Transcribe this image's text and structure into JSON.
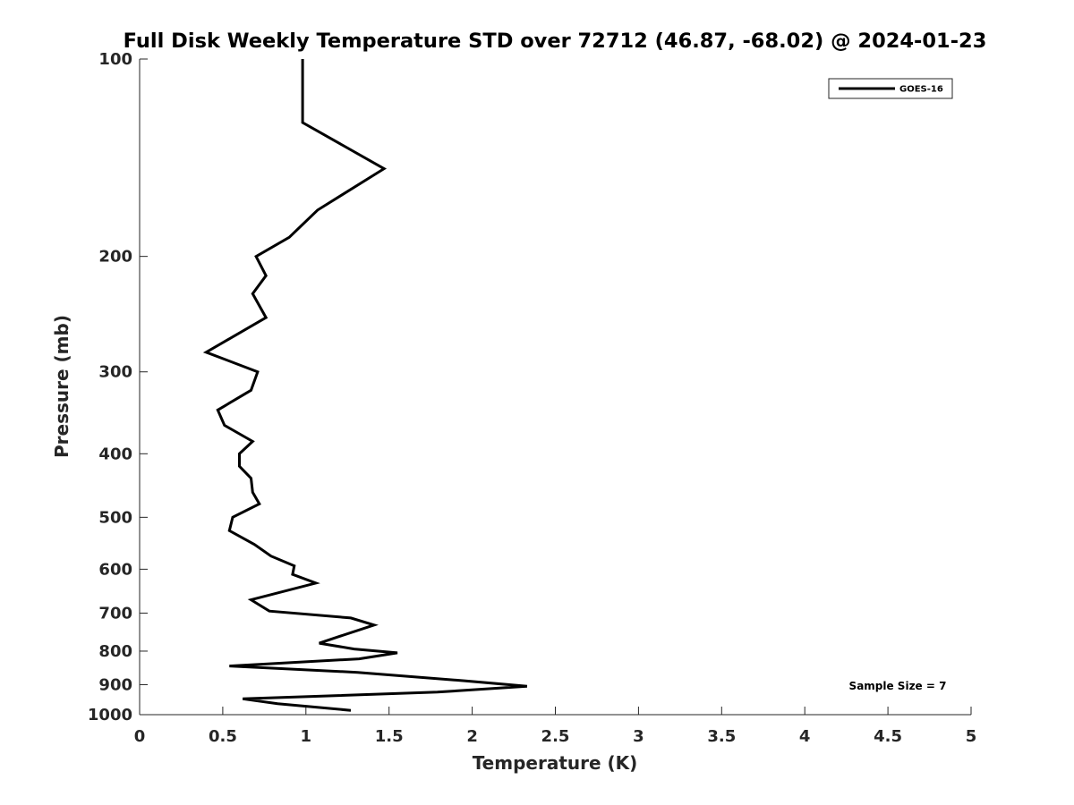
{
  "chart_data": {
    "type": "line",
    "title": "Full Disk Weekly Temperature STD over 72712 (46.87, -68.02) @ 2024-01-23",
    "xlabel": "Temperature (K)",
    "ylabel": "Pressure (mb)",
    "xlim": [
      0,
      5
    ],
    "ylim": [
      100,
      1000
    ],
    "y_scale": "log",
    "y_reversed": true,
    "x_ticks": [
      "0",
      "0.5",
      "1",
      "1.5",
      "2",
      "2.5",
      "3",
      "3.5",
      "4",
      "4.5",
      "5"
    ],
    "y_ticks": [
      "100",
      "200",
      "300",
      "400",
      "500",
      "600",
      "700",
      "800",
      "900",
      "1000"
    ],
    "grid": false,
    "legend_position": "top-right",
    "annotation": "Sample Size = 7",
    "series": [
      {
        "name": "GOES-16",
        "color": "#000000",
        "points": [
          [
            0.98,
            100
          ],
          [
            0.98,
            115
          ],
          [
            0.98,
            125
          ],
          [
            1.47,
            147
          ],
          [
            1.07,
            170
          ],
          [
            0.9,
            187
          ],
          [
            0.7,
            200
          ],
          [
            0.76,
            214
          ],
          [
            0.68,
            228
          ],
          [
            0.76,
            248
          ],
          [
            0.4,
            280
          ],
          [
            0.71,
            300
          ],
          [
            0.67,
            320
          ],
          [
            0.47,
            343
          ],
          [
            0.51,
            362
          ],
          [
            0.68,
            383
          ],
          [
            0.6,
            400
          ],
          [
            0.6,
            418
          ],
          [
            0.67,
            436
          ],
          [
            0.68,
            458
          ],
          [
            0.72,
            477
          ],
          [
            0.56,
            500
          ],
          [
            0.54,
            524
          ],
          [
            0.69,
            550
          ],
          [
            0.79,
            573
          ],
          [
            0.93,
            593
          ],
          [
            0.92,
            611
          ],
          [
            1.06,
            630
          ],
          [
            0.67,
            668
          ],
          [
            0.78,
            695
          ],
          [
            1.27,
            712
          ],
          [
            1.41,
            730
          ],
          [
            1.2,
            760
          ],
          [
            1.08,
            778
          ],
          [
            1.29,
            794
          ],
          [
            1.55,
            805
          ],
          [
            1.32,
            822
          ],
          [
            0.54,
            843
          ],
          [
            1.31,
            862
          ],
          [
            1.96,
            888
          ],
          [
            2.33,
            905
          ],
          [
            1.79,
            924
          ],
          [
            0.62,
            946
          ],
          [
            0.83,
            962
          ],
          [
            1.27,
            985
          ]
        ]
      }
    ]
  }
}
